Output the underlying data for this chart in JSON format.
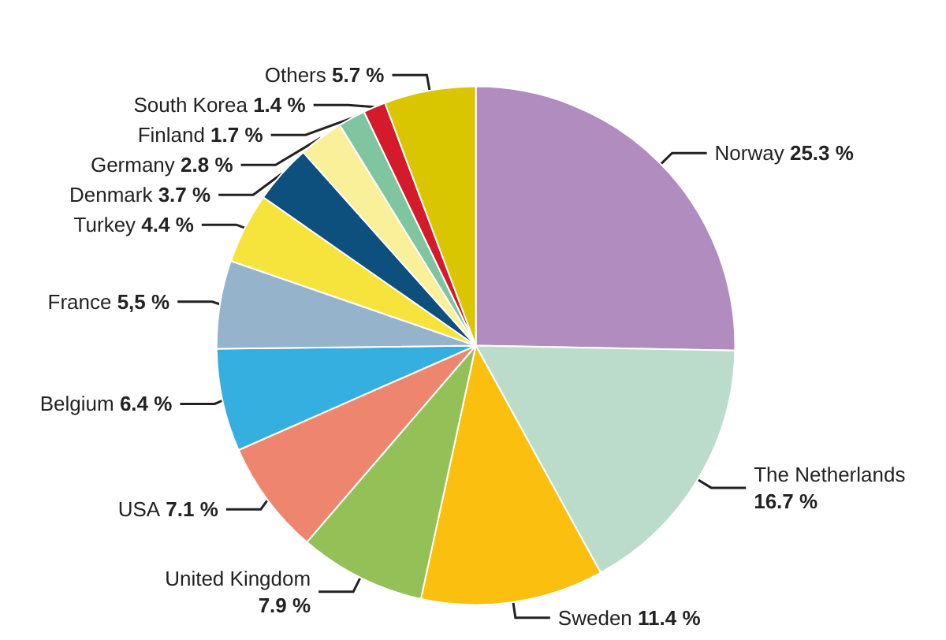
{
  "chart_data": {
    "type": "pie",
    "categories": [
      "Norway",
      "The Netherlands",
      "Sweden",
      "United Kingdom",
      "USA",
      "Belgium",
      "France",
      "Turkey",
      "Denmark",
      "Germany",
      "Finland",
      "South Korea",
      "Others"
    ],
    "values": [
      25.3,
      16.7,
      11.4,
      7.9,
      7.1,
      6.4,
      5.5,
      4.4,
      3.7,
      2.8,
      1.7,
      1.4,
      5.7
    ],
    "value_labels": [
      "25.3 %",
      "16.7 %",
      "11.4 %",
      "7.9 %",
      "7.1 %",
      "6.4 %",
      "5,5 %",
      "4.4 %",
      "3.7 %",
      "2.8 %",
      "1.7 %",
      "1.4 %",
      "5.7 %"
    ],
    "colors": [
      "#b08cbf",
      "#bbdccb",
      "#fbbf0f",
      "#94c157",
      "#ee856f",
      "#35aee0",
      "#96b3cc",
      "#f6e33c",
      "#0d4f7d",
      "#faf09a",
      "#7fc5a0",
      "#d31b2b",
      "#d9c500"
    ],
    "legend": false
  }
}
